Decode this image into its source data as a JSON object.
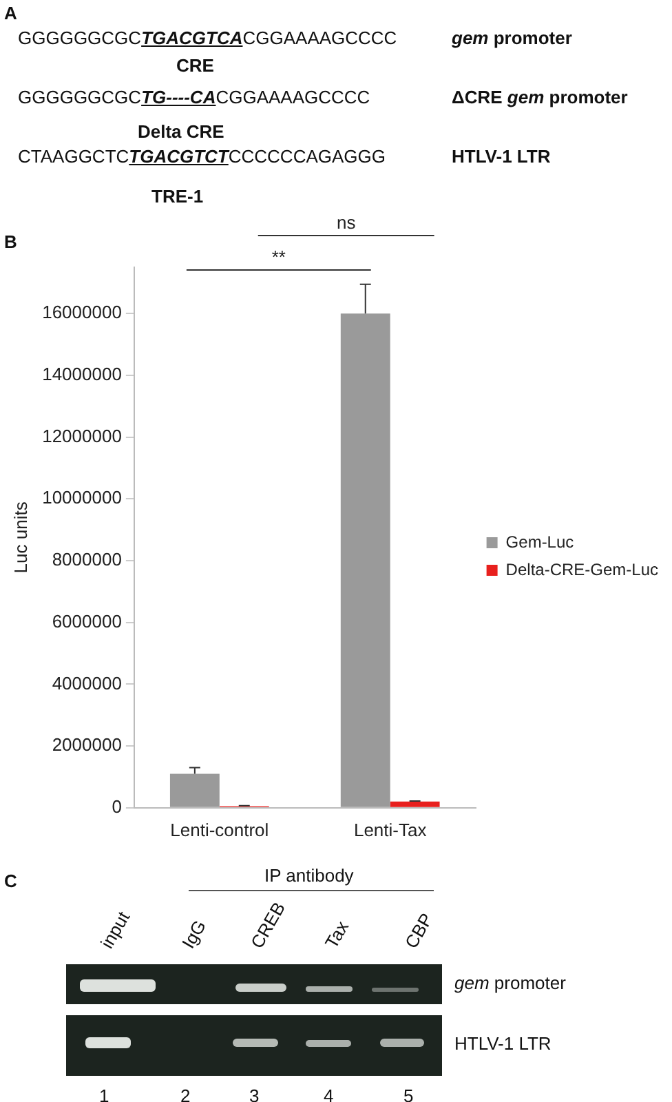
{
  "chart_data": {
    "type": "bar",
    "ylabel": "Luc units",
    "categories": [
      "Lenti-control",
      "Lenti-Tax"
    ],
    "series": [
      {
        "name": "Gem-Luc",
        "color": "#9a9a9a",
        "values": [
          1100000,
          16000000
        ],
        "errors": [
          200000,
          950000
        ]
      },
      {
        "name": "Delta-CRE-Gem-Luc",
        "color": "#e8201e",
        "values": [
          50000,
          200000
        ],
        "errors": [
          20000,
          20000
        ]
      }
    ],
    "ylim": [
      0,
      17500000
    ],
    "yticks": [
      0,
      2000000,
      4000000,
      6000000,
      8000000,
      10000000,
      12000000,
      14000000,
      16000000
    ],
    "grid": false,
    "legend": "right",
    "annotations": [
      "A",
      "GGGGGGCGC",
      "TGACGTCA",
      "CGGAAAAGCCCC",
      "gem",
      "promoter",
      "CRE",
      "GGGGGGCGC",
      "TG----CA",
      "CGGAAAAGCCCC",
      "ΔCRE",
      "gem",
      "promoter",
      "Delta CRE",
      "CTAAGGCTC",
      "TGACGTCT",
      "CCCCCCAGAGGG",
      "HTLV-1 LTR",
      "TRE-1",
      "B",
      "**",
      "ns",
      "C",
      "IP antibody",
      "input",
      "IgG",
      "CREB",
      "Tax",
      "CBP",
      "gem",
      "promoter",
      "HTLV-1 LTR",
      "1",
      "2",
      "3",
      "4",
      "5"
    ]
  }
}
